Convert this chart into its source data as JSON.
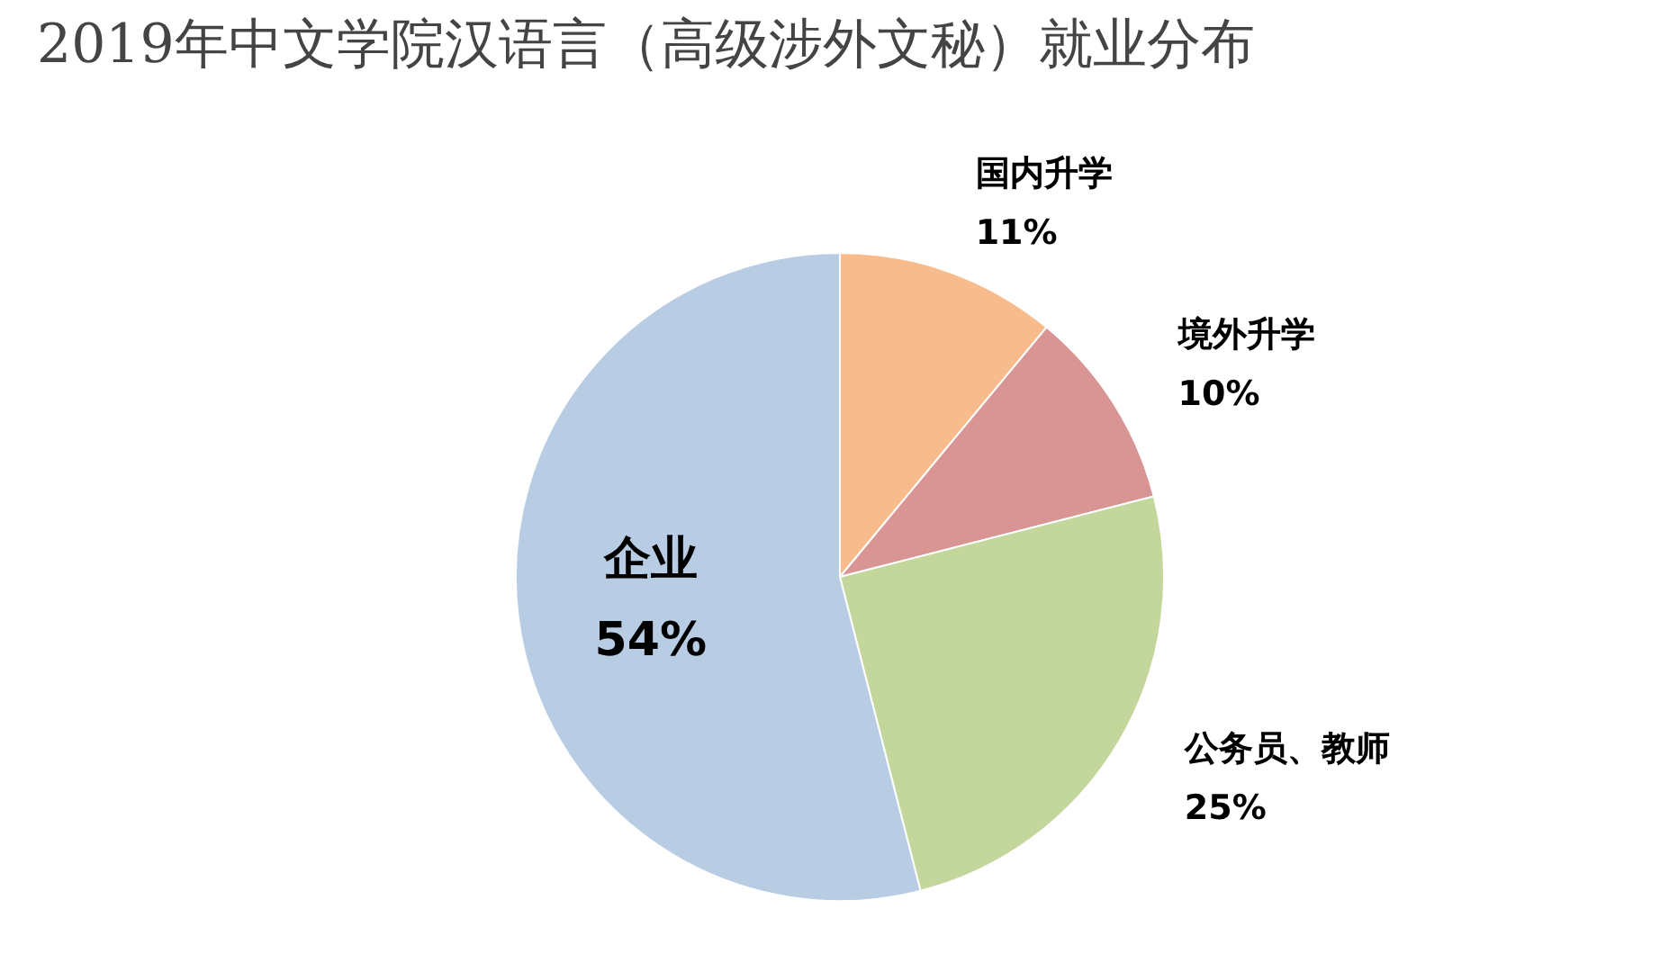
{
  "chart_data": {
    "type": "pie",
    "title": "2019年中文学院汉语言（高级涉外文秘）就业分布",
    "categories": [
      "国内升学",
      "境外升学",
      "公务员、教师",
      "企业"
    ],
    "values": [
      11,
      10,
      25,
      54
    ],
    "value_labels": [
      "11%",
      "10%",
      "25%",
      "54%"
    ],
    "colors": [
      "#f8bc8c",
      "#d99594",
      "#c3d69b",
      "#b8cce4"
    ]
  }
}
